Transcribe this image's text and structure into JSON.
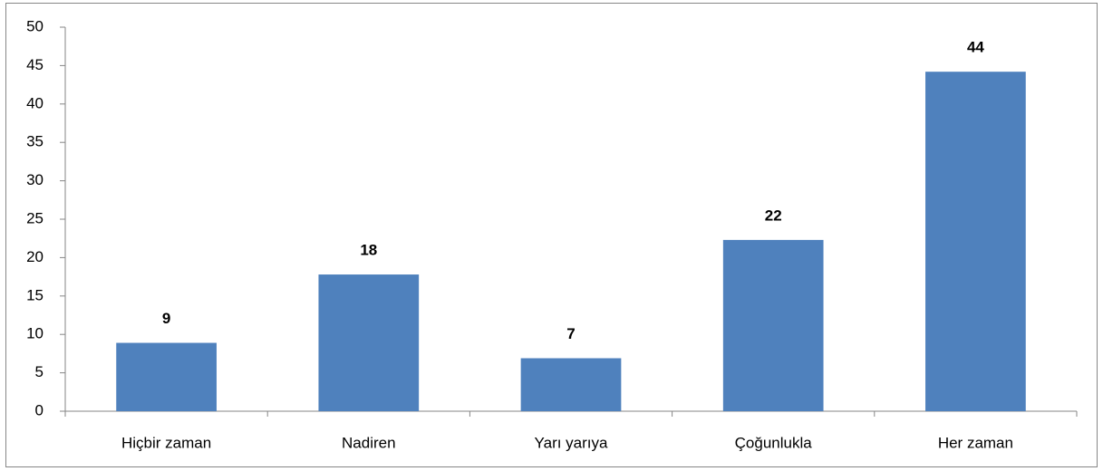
{
  "chart_data": {
    "type": "bar",
    "categories": [
      "Hiçbir zaman",
      "Nadiren",
      "Yarı yarıya",
      "Çoğunlukla",
      "Her zaman"
    ],
    "values": [
      8.9,
      17.8,
      6.9,
      22.3,
      44.2
    ],
    "value_labels": [
      "9",
      "18",
      "7",
      "22",
      "44"
    ],
    "color": "#4f81bd",
    "ylim": [
      0,
      50
    ],
    "yticks": [
      0,
      5,
      10,
      15,
      20,
      25,
      30,
      35,
      40,
      45,
      50
    ],
    "grid": false
  }
}
